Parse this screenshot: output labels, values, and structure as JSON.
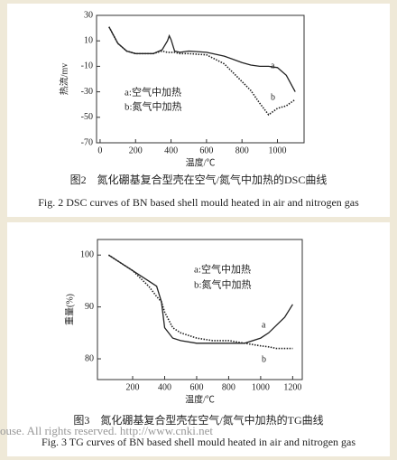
{
  "chart_data": [
    {
      "type": "line",
      "ylabel": "热流/mv",
      "xlabel": "温度/℃",
      "legend": [
        "a:空气中加热",
        "b:氮气中加热"
      ],
      "caption_cn": "图2　氮化硼基复合型壳在空气/氮气中加热的DSC曲线",
      "caption_en": "Fig. 2 DSC curves of BN based shell mould heated in air and nitrogen gas",
      "xlim": [
        -20,
        1150
      ],
      "xticks": [
        0,
        200,
        400,
        600,
        800,
        1000
      ],
      "ylim": [
        -70,
        30
      ],
      "yticks": [
        -70,
        -50,
        -30,
        -10,
        10,
        30
      ],
      "x": [
        50,
        100,
        150,
        200,
        250,
        300,
        350,
        380,
        390,
        400,
        420,
        450,
        500,
        600,
        700,
        800,
        850,
        900,
        950,
        1000,
        1050,
        1100
      ],
      "series": [
        {
          "name": "a",
          "color": "#222222",
          "dashed": false,
          "values": [
            21,
            8,
            2,
            0,
            0,
            0,
            3,
            10,
            14,
            11,
            2,
            1,
            2,
            1,
            -2,
            -7,
            -9,
            -10,
            -10,
            -11,
            -17,
            -30
          ]
        },
        {
          "name": "b",
          "color": "#222222",
          "dashed": true,
          "values": [
            21,
            8,
            2,
            0,
            0,
            0,
            2,
            1,
            1,
            1,
            1,
            0,
            0,
            -1,
            -8,
            -22,
            -29,
            -39,
            -48,
            -43,
            -41,
            -36
          ]
        }
      ]
    },
    {
      "type": "line",
      "ylabel": "重量(%)",
      "xlabel": "温度/℃",
      "legend": [
        "a:空气中加热",
        "b:氮气中加热"
      ],
      "caption_cn": "图3　氮化硼基复合型壳在空气/氮气中加热的TG曲线",
      "caption_en": "Fig. 3 TG curves of BN based shell mould heated in air and nitrogen gas",
      "xlim": [
        -20,
        1260
      ],
      "xticks": [
        200,
        400,
        600,
        800,
        1000,
        1200
      ],
      "ylim": [
        76,
        103
      ],
      "yticks": [
        80,
        90,
        100
      ],
      "x": [
        50,
        100,
        200,
        300,
        350,
        380,
        400,
        450,
        500,
        600,
        700,
        800,
        900,
        1000,
        1050,
        1100,
        1150,
        1200
      ],
      "series": [
        {
          "name": "a",
          "color": "#222222",
          "dashed": false,
          "values": [
            100,
            99,
            97,
            95,
            94,
            91,
            86,
            84,
            83.5,
            83,
            83,
            83,
            83,
            84,
            85,
            86.5,
            88,
            90.5
          ]
        },
        {
          "name": "b",
          "color": "#222222",
          "dashed": true,
          "values": [
            100,
            99,
            97,
            94,
            92,
            91,
            89,
            86,
            85,
            84,
            83.5,
            83.5,
            83,
            82.5,
            82.3,
            82,
            82,
            82
          ]
        }
      ]
    }
  ],
  "watermark": "ouse. All rights reserved.    http://www.cnki.net"
}
